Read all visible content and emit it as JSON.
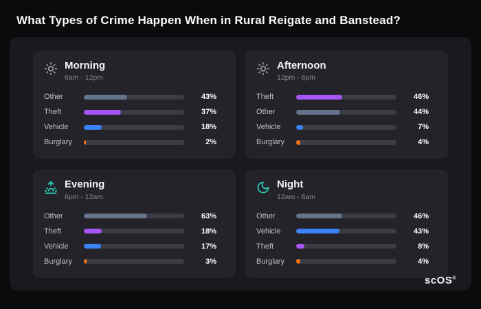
{
  "page": {
    "title": "What Types of Crime Happen When in Rural Reigate and Banstead?",
    "brand": "scOS",
    "brand_reg": "®"
  },
  "category_colors": {
    "Other": "#64748b",
    "Theft": "#a855f7",
    "Vehicle": "#3b82f6",
    "Burglary": "#f97316"
  },
  "colors": {
    "background": "#0b0b0d",
    "panel": "#1a1a1e",
    "card": "#232329",
    "bar_track": "#3c3c45",
    "accent_teal": "#2dd4bf",
    "icon_gray": "#a1a1aa"
  },
  "chart_data": [
    {
      "type": "bar",
      "title": "Morning",
      "subtitle": "6am - 12pm",
      "icon": "sun-icon",
      "categories": [
        "Other",
        "Theft",
        "Vehicle",
        "Burglary"
      ],
      "values": [
        43,
        37,
        18,
        2
      ],
      "value_suffix": "%",
      "xlim": [
        0,
        100
      ],
      "legend": "none",
      "grid": false
    },
    {
      "type": "bar",
      "title": "Afternoon",
      "subtitle": "12pm - 6pm",
      "icon": "sun-icon",
      "categories": [
        "Theft",
        "Other",
        "Vehicle",
        "Burglary"
      ],
      "values": [
        46,
        44,
        7,
        4
      ],
      "value_suffix": "%",
      "xlim": [
        0,
        100
      ],
      "legend": "none",
      "grid": false
    },
    {
      "type": "bar",
      "title": "Evening",
      "subtitle": "6pm - 12am",
      "icon": "sunset-icon",
      "categories": [
        "Other",
        "Theft",
        "Vehicle",
        "Burglary"
      ],
      "values": [
        63,
        18,
        17,
        3
      ],
      "value_suffix": "%",
      "xlim": [
        0,
        100
      ],
      "legend": "none",
      "grid": false
    },
    {
      "type": "bar",
      "title": "Night",
      "subtitle": "12am - 6am",
      "icon": "moon-icon",
      "categories": [
        "Other",
        "Vehicle",
        "Theft",
        "Burglary"
      ],
      "values": [
        46,
        43,
        8,
        4
      ],
      "value_suffix": "%",
      "xlim": [
        0,
        100
      ],
      "legend": "none",
      "grid": false
    }
  ]
}
